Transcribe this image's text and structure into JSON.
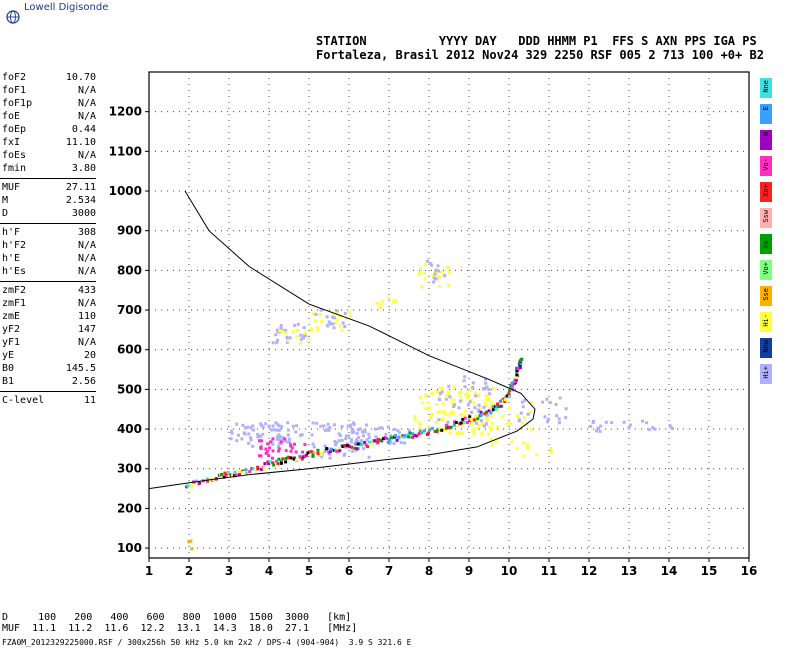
{
  "header": {
    "logo_text": "Lowell Digisonde",
    "labels": "STATION          YYYY DAY   DDD HHMM P1  FFS S AXN PPS IGA PS",
    "values": "Fortaleza, Brasil 2012 Nov24 329 2250 RSF 005 2 713 100 +0+ B2"
  },
  "params": [
    {
      "name": "foF2",
      "value": "10.70"
    },
    {
      "name": "foF1",
      "value": "N/A"
    },
    {
      "name": "foF1p",
      "value": "N/A"
    },
    {
      "name": "foE",
      "value": "N/A"
    },
    {
      "name": "foEp",
      "value": "0.44"
    },
    {
      "name": "fxI",
      "value": "11.10"
    },
    {
      "name": "foEs",
      "value": "N/A"
    },
    {
      "name": "fmin",
      "value": "3.80"
    },
    {
      "sep": true
    },
    {
      "name": "MUF",
      "value": "27.11"
    },
    {
      "name": "M",
      "value": "2.534"
    },
    {
      "name": "D",
      "value": "3000"
    },
    {
      "sep": true
    },
    {
      "name": "h'F",
      "value": "308"
    },
    {
      "name": "h'F2",
      "value": "N/A"
    },
    {
      "name": "h'E",
      "value": "N/A"
    },
    {
      "name": "h'Es",
      "value": "N/A"
    },
    {
      "sep": true
    },
    {
      "name": "zmF2",
      "value": "433"
    },
    {
      "name": "zmF1",
      "value": "N/A"
    },
    {
      "name": "zmE",
      "value": "110"
    },
    {
      "name": "yF2",
      "value": "147"
    },
    {
      "name": "yF1",
      "value": "N/A"
    },
    {
      "name": "yE",
      "value": "20"
    },
    {
      "name": "B0",
      "value": "145.5"
    },
    {
      "name": "B1",
      "value": "2.56"
    },
    {
      "sep": true
    },
    {
      "name": "C-level",
      "value": "11"
    }
  ],
  "legend": [
    {
      "label": "Nne",
      "color": "#40e0e0"
    },
    {
      "label": "E",
      "color": "#3aa0ff"
    },
    {
      "label": "W",
      "color": "#a000c0"
    },
    {
      "label": "Vo-",
      "color": "#ff30c0"
    },
    {
      "label": "Xo+",
      "color": "#ff2020"
    },
    {
      "label": "Ssw",
      "color": "#ffb0b0"
    },
    {
      "label": "Vo-",
      "color": "#00a000"
    },
    {
      "label": "Vo+",
      "color": "#80ff80"
    },
    {
      "label": "Sse",
      "color": "#ffb000"
    },
    {
      "label": "Hi-",
      "color": "#ffff40"
    },
    {
      "label": "Nnw",
      "color": "#1040a0"
    },
    {
      "label": "Hi+",
      "color": "#b0b0ff"
    }
  ],
  "footer": {
    "d_row": "D     100   200   400   600   800  1000  1500  3000   [km]",
    "muf_row": "MUF  11.1  11.2  11.6  12.2  13.1  14.3  18.0  27.1   [MHz]",
    "file_line": "FZA0M_2012329225000.RSF / 300x256h 50 kHz 5.0 km 2x2 / DPS-4 (904-904)  3.9 S 321.6 E"
  },
  "chart_data": {
    "type": "scatter",
    "xlim": [
      1,
      16
    ],
    "ylim": [
      75,
      1300
    ],
    "xticks": [
      1,
      2,
      3,
      4,
      5,
      6,
      7,
      8,
      9,
      10,
      11,
      12,
      13,
      14,
      15,
      16
    ],
    "yticks": [
      100,
      200,
      300,
      400,
      500,
      600,
      700,
      800,
      900,
      1000,
      1100,
      1200
    ],
    "grid": true,
    "profile_curve": [
      [
        1.9,
        1000
      ],
      [
        2.5,
        900
      ],
      [
        3.5,
        810
      ],
      [
        5.0,
        715
      ],
      [
        6.5,
        660
      ],
      [
        8.0,
        585
      ],
      [
        9.5,
        525
      ],
      [
        10.3,
        490
      ],
      [
        10.65,
        450
      ],
      [
        10.6,
        425
      ],
      [
        10.2,
        395
      ],
      [
        9.2,
        355
      ],
      [
        8.0,
        335
      ],
      [
        6.5,
        318
      ],
      [
        5.0,
        300
      ],
      [
        3.5,
        285
      ],
      [
        2.5,
        272
      ],
      [
        1.0,
        250
      ]
    ],
    "o_trace": [
      [
        1.9,
        262
      ],
      [
        2.5,
        275
      ],
      [
        3.0,
        290
      ],
      [
        3.5,
        300
      ],
      [
        4.0,
        318
      ],
      [
        4.5,
        328
      ],
      [
        5.0,
        340
      ],
      [
        5.5,
        350
      ],
      [
        6.0,
        358
      ],
      [
        6.5,
        368
      ],
      [
        7.0,
        378
      ],
      [
        7.5,
        388
      ],
      [
        8.0,
        398
      ],
      [
        8.5,
        412
      ],
      [
        9.0,
        430
      ],
      [
        9.5,
        450
      ],
      [
        9.8,
        470
      ],
      [
        10.0,
        500
      ],
      [
        10.1,
        525
      ],
      [
        10.2,
        555
      ],
      [
        10.3,
        585
      ]
    ],
    "echo_clusters": [
      {
        "x": [
          3.0,
          4.8
        ],
        "y": [
          360,
          420
        ],
        "color": "#b0b0ff",
        "n": 70
      },
      {
        "x": [
          3.6,
          4.9
        ],
        "y": [
          330,
          380
        ],
        "color": "#ff30c0",
        "n": 30
      },
      {
        "x": [
          5.0,
          6.5
        ],
        "y": [
          330,
          420
        ],
        "color": "#b0b0ff",
        "n": 60
      },
      {
        "x": [
          6.0,
          7.5
        ],
        "y": [
          365,
          410
        ],
        "color": "#b0b0ff",
        "n": 40
      },
      {
        "x": [
          7.6,
          9.6
        ],
        "y": [
          390,
          510
        ],
        "color": "#ffff40",
        "n": 110
      },
      {
        "x": [
          8.1,
          9.5
        ],
        "y": [
          410,
          540
        ],
        "color": "#b0b0ff",
        "n": 40
      },
      {
        "x": [
          9.5,
          11.2
        ],
        "y": [
          330,
          480
        ],
        "color": "#ffff40",
        "n": 30
      },
      {
        "x": [
          10.2,
          11.6
        ],
        "y": [
          420,
          490
        ],
        "color": "#b0b0ff",
        "n": 20
      },
      {
        "x": [
          4.0,
          4.9
        ],
        "y": [
          620,
          670
        ],
        "color": "#b0b0ff",
        "n": 24
      },
      {
        "x": [
          4.2,
          5.0
        ],
        "y": [
          620,
          660
        ],
        "color": "#ffff40",
        "n": 10
      },
      {
        "x": [
          5.0,
          6.0
        ],
        "y": [
          650,
          700
        ],
        "color": "#ffff40",
        "n": 20
      },
      {
        "x": [
          5.1,
          5.9
        ],
        "y": [
          655,
          705
        ],
        "color": "#b0b0ff",
        "n": 14
      },
      {
        "x": [
          7.7,
          8.5
        ],
        "y": [
          760,
          820
        ],
        "color": "#ffff40",
        "n": 22
      },
      {
        "x": [
          7.8,
          8.4
        ],
        "y": [
          770,
          830
        ],
        "color": "#b0b0ff",
        "n": 12
      },
      {
        "x": [
          6.6,
          7.2
        ],
        "y": [
          710,
          740
        ],
        "color": "#ffff40",
        "n": 8
      },
      {
        "x": [
          12.0,
          14.2
        ],
        "y": [
          395,
          425
        ],
        "color": "#b0b0ff",
        "n": 20
      },
      {
        "x": [
          1.9,
          2.1
        ],
        "y": [
          100,
          125
        ],
        "color": "#ffb000",
        "n": 4
      }
    ]
  }
}
